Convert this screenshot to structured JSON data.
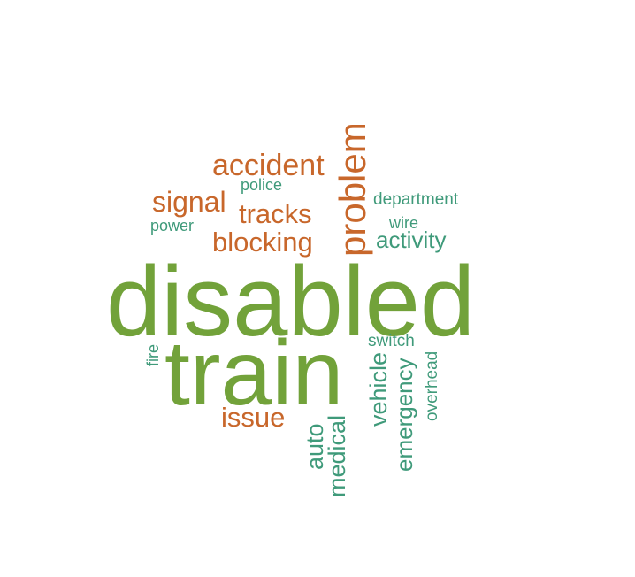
{
  "colors": {
    "green": "#72a23a",
    "orange": "#c8672b",
    "teal": "#3f9a7a"
  },
  "words": {
    "disabled": "disabled",
    "train": "train",
    "problem": "problem",
    "accident": "accident",
    "signal": "signal",
    "tracks": "tracks",
    "blocking": "blocking",
    "issue": "issue",
    "police": "police",
    "power": "power",
    "department": "department",
    "wire": "wire",
    "activity": "activity",
    "fire": "fire",
    "switch": "switch",
    "vehicle": "vehicle",
    "emergency": "emergency",
    "overhead": "overhead",
    "auto": "auto",
    "medical": "medical"
  }
}
